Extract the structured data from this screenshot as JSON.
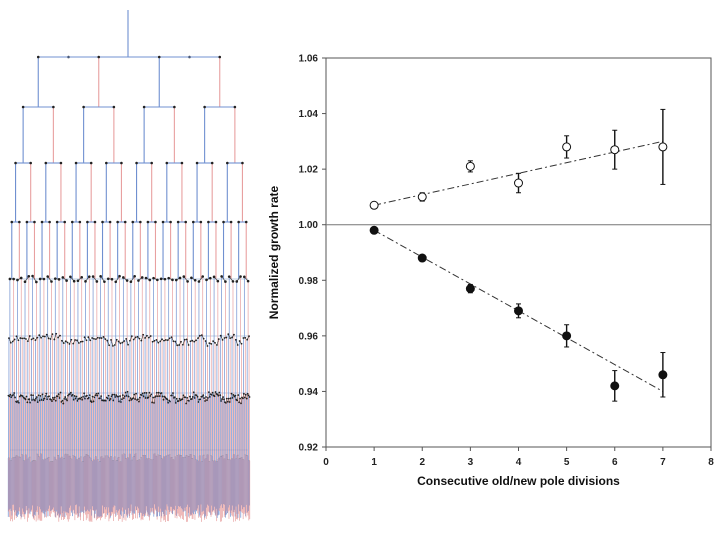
{
  "chart_data": [
    {
      "type": "tree",
      "description_type": "lineage-tree",
      "generations": 8,
      "line_colors": {
        "old_pole": "#e8a0a0",
        "new_pole": "#7090d0",
        "level_guide": "#6a8fc0"
      }
    },
    {
      "type": "scatter",
      "xlabel": "Consecutive old/new pole divisions",
      "ylabel": "Normalized growth rate",
      "xlim": [
        0,
        8
      ],
      "ylim": [
        0.92,
        1.06
      ],
      "xticks": [
        0,
        1,
        2,
        3,
        4,
        5,
        6,
        7,
        8
      ],
      "xtick_labels": [
        "0",
        "1",
        "2",
        "3",
        "4",
        "5",
        "6",
        "7",
        "8"
      ],
      "yticks": [
        0.92,
        0.94,
        0.96,
        0.98,
        1.0,
        1.02,
        1.04,
        1.06
      ],
      "ytick_labels": [
        "0.92",
        "0.94",
        "0.96",
        "0.98",
        "1.00",
        "1.02",
        "1.04",
        "1.06"
      ],
      "reference_line_y": 1.0,
      "grid": false,
      "series": [
        {
          "marker": "open-circle",
          "x": [
            1,
            2,
            3,
            4,
            5,
            6,
            7
          ],
          "y": [
            1.007,
            1.01,
            1.021,
            1.015,
            1.028,
            1.027,
            1.028
          ],
          "err": [
            0.0005,
            0.0015,
            0.002,
            0.0035,
            0.004,
            0.007,
            0.0135
          ],
          "trend": {
            "x": [
              1,
              7
            ],
            "y": [
              1.007,
              1.03
            ]
          }
        },
        {
          "marker": "filled-circle",
          "x": [
            1,
            2,
            3,
            4,
            5,
            6,
            7
          ],
          "y": [
            0.998,
            0.988,
            0.977,
            0.969,
            0.96,
            0.942,
            0.946
          ],
          "err": [
            0.0008,
            0.001,
            0.0015,
            0.0025,
            0.004,
            0.0055,
            0.008
          ],
          "trend": {
            "x": [
              1,
              7
            ],
            "y": [
              0.998,
              0.94
            ]
          }
        }
      ]
    }
  ]
}
